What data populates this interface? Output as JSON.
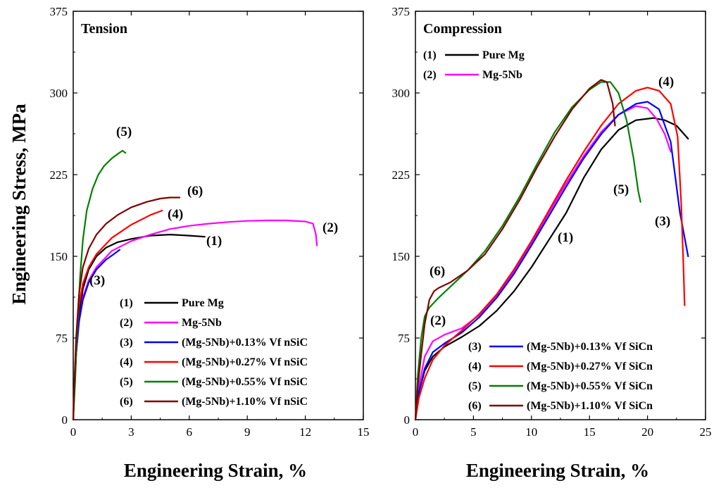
{
  "chart_data": [
    {
      "type": "line",
      "title": "Tension",
      "xlabel": "Engineering Strain, %",
      "ylabel": "Engineering Stress, MPa",
      "xlim": [
        0,
        15
      ],
      "ylim": [
        0,
        375
      ],
      "xticks": [
        "0",
        "3",
        "6",
        "9",
        "12",
        "15"
      ],
      "yticks": [
        "0",
        "75",
        "150",
        "225",
        "300",
        "375"
      ],
      "series": [
        {
          "id": "1",
          "name": "Pure Mg",
          "label": "(1)",
          "color": "#000000",
          "x": [
            0,
            0.05,
            0.15,
            0.3,
            0.5,
            0.8,
            1.2,
            1.7,
            2.3,
            3.0,
            4.0,
            5.0,
            6.0,
            6.8
          ],
          "y": [
            0,
            25,
            60,
            95,
            120,
            138,
            150,
            158,
            163,
            166,
            169,
            170,
            169,
            168
          ]
        },
        {
          "id": "2",
          "name": "Mg-5Nb",
          "label": "(2)",
          "color": "#ff00ff",
          "x": [
            0,
            0.05,
            0.15,
            0.3,
            0.5,
            0.8,
            1.2,
            2.0,
            3.0,
            4.0,
            5.0,
            6.0,
            7.0,
            8.0,
            9.0,
            10.0,
            11.0,
            12.0,
            12.4,
            12.55,
            12.6
          ],
          "y": [
            0,
            25,
            60,
            90,
            112,
            128,
            140,
            155,
            164,
            170,
            175,
            178,
            180,
            181.5,
            182.5,
            183,
            183,
            182,
            180,
            170,
            160
          ]
        },
        {
          "id": "3",
          "name": "(Mg-5Nb)+0.13% Vf nSiC",
          "label": "(3)",
          "color": "#0000ff",
          "x": [
            0,
            0.05,
            0.15,
            0.3,
            0.5,
            0.8,
            1.2,
            1.7,
            2.1,
            2.4
          ],
          "y": [
            0,
            25,
            60,
            90,
            110,
            126,
            138,
            147,
            152,
            156
          ]
        },
        {
          "id": "4",
          "name": "(Mg-5Nb)+0.27% Vf nSiC",
          "label": "(4)",
          "color": "#ff0000",
          "x": [
            0,
            0.05,
            0.15,
            0.3,
            0.5,
            0.8,
            1.2,
            2.0,
            3.0,
            4.0,
            4.6
          ],
          "y": [
            0,
            28,
            70,
            105,
            125,
            140,
            152,
            167,
            179,
            188,
            192
          ]
        },
        {
          "id": "5",
          "name": "(Mg-5Nb)+0.55% Vf nSiC",
          "label": "(5)",
          "color": "#008000",
          "x": [
            0,
            0.1,
            0.2,
            0.35,
            0.5,
            0.7,
            1.0,
            1.3,
            1.6,
            2.0,
            2.3,
            2.55,
            2.7
          ],
          "y": [
            0,
            35,
            80,
            130,
            165,
            192,
            212,
            225,
            233,
            240,
            244,
            247,
            245
          ]
        },
        {
          "id": "6",
          "name": "(Mg-5Nb)+1.10% Vf nSiC",
          "label": "(6)",
          "color": "#800000",
          "x": [
            0,
            0.05,
            0.15,
            0.3,
            0.5,
            0.8,
            1.2,
            1.7,
            2.3,
            3.0,
            3.8,
            4.5,
            5.0,
            5.5
          ],
          "y": [
            0,
            30,
            75,
            115,
            140,
            157,
            170,
            180,
            188,
            195,
            200,
            203,
            204,
            204
          ]
        }
      ],
      "legend": [
        {
          "label": "(1)",
          "text": "Pure Mg",
          "color": "#000000"
        },
        {
          "label": "(2)",
          "text": "Mg-5Nb",
          "color": "#ff00ff"
        },
        {
          "label": "(3)",
          "text": "(Mg-5Nb)+0.13% Vf nSiC",
          "color": "#0000ff"
        },
        {
          "label": "(4)",
          "text": "(Mg-5Nb)+0.27% Vf nSiC",
          "color": "#ff0000"
        },
        {
          "label": "(5)",
          "text": "(Mg-5Nb)+0.55% Vf nSiC",
          "color": "#008000"
        },
        {
          "label": "(6)",
          "text": "(Mg-5Nb)+1.10% Vf nSiC",
          "color": "#800000"
        }
      ],
      "legend_position": "bottom-right"
    },
    {
      "type": "line",
      "title": "Compression",
      "xlabel": "Engineering Strain, %",
      "ylabel": "",
      "xlim": [
        0,
        25
      ],
      "ylim": [
        0,
        375
      ],
      "xticks": [
        "0",
        "5",
        "10",
        "15",
        "20",
        "25"
      ],
      "yticks": [
        "0",
        "75",
        "150",
        "225",
        "300",
        "375"
      ],
      "series": [
        {
          "id": "1",
          "name": "Pure Mg",
          "label": "(1)",
          "color": "#000000",
          "x": [
            0,
            0.3,
            0.8,
            1.5,
            2.5,
            4.0,
            5.5,
            7.0,
            8.5,
            10.0,
            11.5,
            13.0,
            14.5,
            16.0,
            17.5,
            19.0,
            20.5,
            21.5,
            22.5,
            23.5
          ],
          "y": [
            0,
            25,
            45,
            58,
            67,
            76,
            86,
            100,
            118,
            140,
            165,
            190,
            222,
            248,
            266,
            275,
            277,
            275,
            270,
            258
          ]
        },
        {
          "id": "2",
          "name": "Mg-5Nb",
          "label": "(2)",
          "color": "#ff00ff",
          "x": [
            0,
            0.3,
            0.8,
            1.5,
            2.5,
            4.0,
            5.5,
            7.0,
            8.5,
            10.0,
            11.5,
            13.0,
            14.5,
            16.0,
            17.5,
            19.0,
            20.0,
            20.8,
            21.5,
            22.0
          ],
          "y": [
            0,
            30,
            58,
            72,
            78,
            84,
            96,
            114,
            136,
            162,
            190,
            217,
            242,
            264,
            280,
            288,
            286,
            276,
            262,
            246
          ]
        },
        {
          "id": "3",
          "name": "(Mg-5Nb)+0.13% Vf SiCn",
          "label": "(3)",
          "color": "#0000ff",
          "x": [
            0,
            0.3,
            0.8,
            1.5,
            2.5,
            4.0,
            5.5,
            7.0,
            8.5,
            10.0,
            11.5,
            13.0,
            14.5,
            16.0,
            17.5,
            19.0,
            20.0,
            21.0,
            22.0,
            22.8,
            23.5
          ],
          "y": [
            0,
            25,
            47,
            62,
            70,
            80,
            94,
            112,
            134,
            160,
            187,
            214,
            240,
            262,
            280,
            290,
            292,
            285,
            255,
            190,
            150
          ]
        },
        {
          "id": "4",
          "name": "(Mg-5Nb)+0.27% Vf SiCn",
          "label": "(4)",
          "color": "#ff0000",
          "x": [
            0,
            0.3,
            0.8,
            1.5,
            2.5,
            4.0,
            5.5,
            7.0,
            8.5,
            10.0,
            11.5,
            13.0,
            14.5,
            16.0,
            17.5,
            19.0,
            20.0,
            21.0,
            22.0,
            22.6,
            22.9,
            23.1,
            23.2
          ],
          "y": [
            0,
            20,
            38,
            55,
            68,
            82,
            97,
            115,
            138,
            164,
            192,
            220,
            246,
            270,
            290,
            302,
            305,
            302,
            290,
            260,
            200,
            140,
            105
          ]
        },
        {
          "id": "5",
          "name": "(Mg-5Nb)+0.55% Vf SiCn",
          "label": "(5)",
          "color": "#008000",
          "x": [
            0,
            0.2,
            0.5,
            0.8,
            1.2,
            2.0,
            3.0,
            4.5,
            6.0,
            7.5,
            9.0,
            10.5,
            12.0,
            13.5,
            15.0,
            16.0,
            16.8,
            17.5,
            18.2,
            18.8,
            19.2,
            19.4
          ],
          "y": [
            0,
            40,
            75,
            95,
            103,
            112,
            122,
            137,
            155,
            178,
            205,
            235,
            264,
            287,
            303,
            310,
            310,
            300,
            275,
            240,
            210,
            200
          ]
        },
        {
          "id": "6",
          "name": "(Mg-5Nb)+1.10% Vf SiCn",
          "label": "(6)",
          "color": "#800000",
          "x": [
            0,
            0.2,
            0.5,
            0.8,
            1.2,
            1.6,
            2.0,
            3.0,
            4.5,
            6.0,
            7.5,
            9.0,
            10.5,
            12.0,
            13.5,
            15.0,
            16.0,
            16.5,
            17.0,
            17.2
          ],
          "y": [
            0,
            30,
            60,
            88,
            110,
            118,
            121,
            126,
            137,
            152,
            175,
            202,
            232,
            260,
            285,
            304,
            312,
            310,
            290,
            270
          ]
        }
      ],
      "legend": [
        {
          "label": "(1)",
          "text": "Pure Mg",
          "color": "#000000"
        },
        {
          "label": "(2)",
          "text": "Mg-5Nb",
          "color": "#ff00ff"
        },
        {
          "label": "(3)",
          "text": "(Mg-5Nb)+0.13% Vf SiCn",
          "color": "#0000ff"
        },
        {
          "label": "(4)",
          "text": "(Mg-5Nb)+0.27% Vf SiCn",
          "color": "#ff0000"
        },
        {
          "label": "(5)",
          "text": "(Mg-5Nb)+0.55% Vf SiCn",
          "color": "#008000"
        },
        {
          "label": "(6)",
          "text": "(Mg-5Nb)+1.10% Vf SiCn",
          "color": "#800000"
        }
      ],
      "legend_position": "top-left and bottom-right"
    }
  ]
}
